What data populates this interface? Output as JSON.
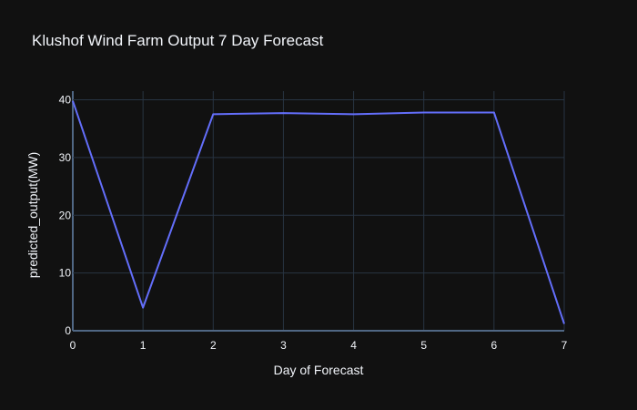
{
  "chart_data": {
    "type": "line",
    "title": "Klushof Wind Farm Output 7 Day Forecast",
    "xlabel": "Day of Forecast",
    "ylabel": "predicted_output(MW)",
    "x": [
      0,
      1,
      2,
      3,
      4,
      5,
      6,
      7
    ],
    "series": [
      {
        "values": [
          39.8,
          4.0,
          37.5,
          37.7,
          37.5,
          37.8,
          37.8,
          1.2
        ],
        "color": "#636efa"
      }
    ],
    "xlim": [
      0,
      7
    ],
    "ylim": [
      0,
      41.5
    ],
    "xticks": [
      0,
      1,
      2,
      3,
      4,
      5,
      6,
      7
    ],
    "yticks": [
      0,
      10,
      20,
      30,
      40
    ],
    "grid": true
  },
  "colors": {
    "background": "#111111",
    "grid": "#283442",
    "zeroline": "#506784",
    "text": "#f2f5fa"
  }
}
